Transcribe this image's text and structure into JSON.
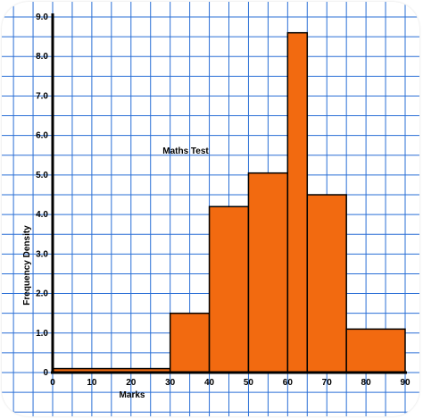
{
  "chart_data": {
    "type": "bar",
    "title": "Maths Test",
    "xlabel": "Marks",
    "ylabel": "Frequency Density",
    "xlim": [
      0,
      90
    ],
    "ylim": [
      0,
      9.0
    ],
    "grid": true,
    "x_ticks": [
      "0",
      "10",
      "20",
      "30",
      "40",
      "50",
      "60",
      "70",
      "80",
      "90"
    ],
    "y_ticks": [
      "0",
      "1.0",
      "2.0",
      "3.0",
      "4.0",
      "5.0",
      "6.0",
      "7.0",
      "8.0",
      "9.0"
    ],
    "bins": [
      {
        "x0": 0,
        "x1": 30,
        "value": 0.1
      },
      {
        "x0": 30,
        "x1": 40,
        "value": 1.5
      },
      {
        "x0": 40,
        "x1": 50,
        "value": 4.2
      },
      {
        "x0": 50,
        "x1": 60,
        "value": 5.05
      },
      {
        "x0": 60,
        "x1": 65,
        "value": 8.6
      },
      {
        "x0": 65,
        "x1": 75,
        "value": 4.5
      },
      {
        "x0": 75,
        "x1": 90,
        "value": 1.1
      }
    ],
    "colors": {
      "bar": "#f26a10",
      "grid": "#2a6fd6",
      "axis": "#000000"
    }
  }
}
